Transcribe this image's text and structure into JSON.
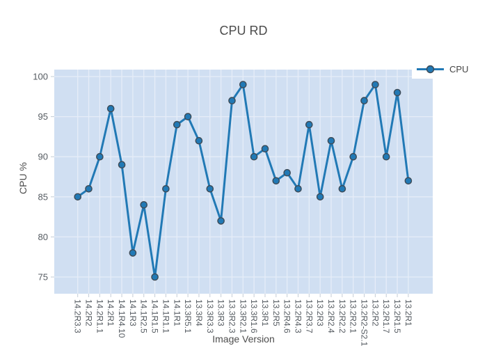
{
  "chart_data": {
    "type": "line",
    "title": "CPU RD",
    "xlabel": "Image Version",
    "ylabel": "CPU %",
    "categories": [
      "14.2R3.3",
      "14.2R2",
      "14.2R1.1",
      "14.2R1",
      "14.1R4.10",
      "14.1R3",
      "14.1R2.5",
      "14.1R1.5",
      "14.1R1.1",
      "14.1R1",
      "13.3R5.1",
      "13.3R4",
      "13.3R3.3",
      "13.3R3",
      "13.3R2.3",
      "13.3R2.1",
      "13.3R1.6",
      "13.3R1",
      "13.2R5",
      "13.2R4.6",
      "13.2R4.3",
      "13.2R3.7",
      "13.2R3",
      "13.2R2.4",
      "13.2R2.2",
      "13.2R2.1",
      "13.2R2-S2.1",
      "13.2R2",
      "13.2R1.7",
      "13.2R1.5",
      "13.2R1"
    ],
    "series": [
      {
        "name": "CPU",
        "values": [
          85,
          86,
          90,
          96,
          89,
          78,
          84,
          75,
          86,
          94,
          95,
          92,
          86,
          82,
          97,
          99,
          90,
          91,
          87,
          88,
          86,
          94,
          85,
          92,
          86,
          90,
          97,
          99,
          90,
          98,
          87
        ]
      }
    ],
    "y_ticks": [
      75,
      80,
      85,
      90,
      95,
      100
    ],
    "ylim": [
      72.9,
      100.9
    ],
    "grid": true,
    "legend_position": "top-right",
    "colors": {
      "line": "#2179b5",
      "marker_fill": "#2179b5",
      "marker_edge": "#3d4a56",
      "plot_bg": "#d0dff2",
      "gridline": "#e6edf8",
      "tick_mark": "#c3ccd6",
      "title_text": "#4c4c4c",
      "tick_text": "#555b61",
      "legend_bg": "#ffffff"
    }
  }
}
